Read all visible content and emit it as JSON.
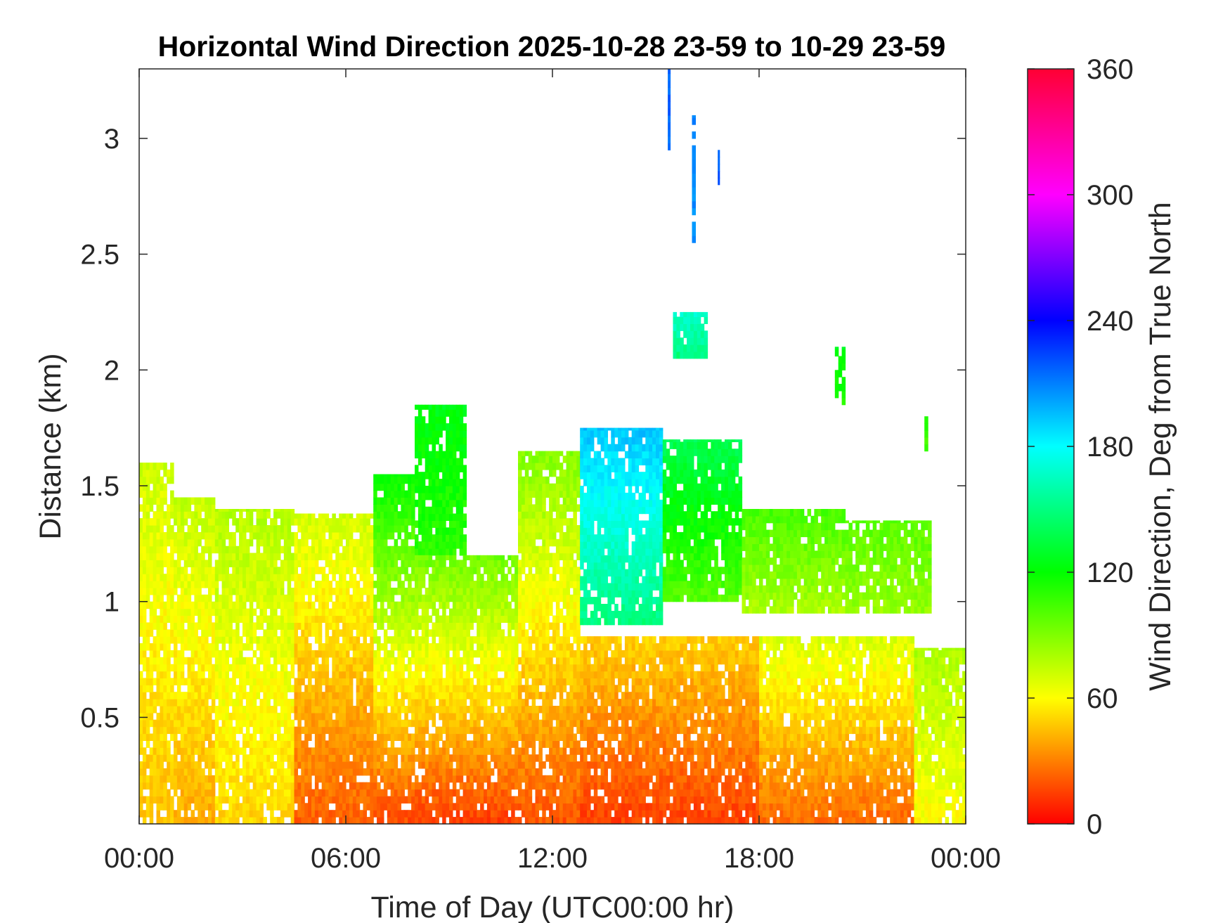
{
  "chart_data": {
    "type": "heatmap",
    "title": "Horizontal Wind Direction 2025-10-28 23-59 to 10-29 23-59",
    "xlabel": "Time of Day (UTC00:00 hr)",
    "ylabel": "Distance (km)",
    "colorbar_label": "Wind Direction, Deg from True North",
    "x_tick_labels": [
      "00:00",
      "06:00",
      "12:00",
      "18:00",
      "00:00"
    ],
    "x_tick_hours": [
      0,
      6,
      12,
      18,
      24
    ],
    "xlim_hours": [
      0,
      24
    ],
    "y_tick_labels": [
      "0.5",
      "1",
      "1.5",
      "2",
      "2.5",
      "3"
    ],
    "y_tick_values": [
      0.5,
      1,
      1.5,
      2,
      2.5,
      3
    ],
    "ylim_km": [
      0.04,
      3.3
    ],
    "colorbar_tick_labels": [
      "0",
      "60",
      "120",
      "180",
      "240",
      "300",
      "360"
    ],
    "colorbar_tick_values": [
      0,
      60,
      120,
      180,
      240,
      300,
      360
    ],
    "color_range_deg": [
      0,
      360
    ],
    "colormap": [
      "#ff0000",
      "#ffff00",
      "#00ff00",
      "#00ffff",
      "#0000ff",
      "#ff00ff",
      "#ff0033"
    ],
    "grid": false,
    "sampling": {
      "time_step_hours": 0.1,
      "range_step_km": 0.03
    },
    "regions": [
      {
        "hour_from": 0.0,
        "hour_to": 1.0,
        "km_from": 0.04,
        "km_to": 1.6,
        "deg_bottom": 45,
        "deg_top": 72
      },
      {
        "hour_from": 1.0,
        "hour_to": 2.2,
        "km_from": 0.04,
        "km_to": 1.45,
        "deg_bottom": 40,
        "deg_top": 75
      },
      {
        "hour_from": 2.2,
        "hour_to": 4.5,
        "km_from": 0.04,
        "km_to": 1.4,
        "deg_bottom": 50,
        "deg_top": 78
      },
      {
        "hour_from": 4.5,
        "hour_to": 6.8,
        "km_from": 0.04,
        "km_to": 1.38,
        "deg_bottom": 22,
        "deg_top": 72
      },
      {
        "hour_from": 6.8,
        "hour_to": 8.0,
        "km_from": 0.04,
        "km_to": 1.55,
        "deg_bottom": 18,
        "deg_top": 120
      },
      {
        "hour_from": 8.0,
        "hour_to": 9.5,
        "km_from": 1.2,
        "km_to": 1.85,
        "deg_bottom": 110,
        "deg_top": 125
      },
      {
        "hour_from": 8.0,
        "hour_to": 11.0,
        "km_from": 0.04,
        "km_to": 1.2,
        "deg_bottom": 15,
        "deg_top": 95
      },
      {
        "hour_from": 11.0,
        "hour_to": 12.8,
        "km_from": 0.04,
        "km_to": 1.65,
        "deg_bottom": 20,
        "deg_top": 90
      },
      {
        "hour_from": 12.8,
        "hour_to": 15.2,
        "km_from": 0.9,
        "km_to": 1.75,
        "deg_bottom": 150,
        "deg_top": 195
      },
      {
        "hour_from": 12.8,
        "hour_to": 18.0,
        "km_from": 0.04,
        "km_to": 0.85,
        "deg_bottom": 15,
        "deg_top": 50
      },
      {
        "hour_from": 15.2,
        "hour_to": 17.5,
        "km_from": 1.0,
        "km_to": 1.7,
        "deg_bottom": 100,
        "deg_top": 140
      },
      {
        "hour_from": 17.5,
        "hour_to": 20.5,
        "km_from": 0.95,
        "km_to": 1.4,
        "deg_bottom": 80,
        "deg_top": 105
      },
      {
        "hour_from": 18.0,
        "hour_to": 22.5,
        "km_from": 0.04,
        "km_to": 0.85,
        "deg_bottom": 25,
        "deg_top": 70
      },
      {
        "hour_from": 20.5,
        "hour_to": 23.0,
        "km_from": 0.95,
        "km_to": 1.35,
        "deg_bottom": 85,
        "deg_top": 100
      },
      {
        "hour_from": 22.5,
        "hour_to": 24.0,
        "km_from": 0.04,
        "km_to": 0.8,
        "deg_bottom": 60,
        "deg_top": 80
      },
      {
        "hour_from": 15.5,
        "hour_to": 16.5,
        "km_from": 2.05,
        "km_to": 2.25,
        "deg_bottom": 150,
        "deg_top": 170
      },
      {
        "hour_from": 20.2,
        "hour_to": 20.5,
        "km_from": 1.85,
        "km_to": 2.1,
        "deg_bottom": 115,
        "deg_top": 125
      },
      {
        "hour_from": 22.8,
        "hour_to": 22.9,
        "km_from": 1.65,
        "km_to": 1.8,
        "deg_bottom": 105,
        "deg_top": 110
      },
      {
        "hour_from": 15.35,
        "hour_to": 15.42,
        "km_from": 2.95,
        "km_to": 3.3,
        "deg_bottom": 215,
        "deg_top": 215
      },
      {
        "hour_from": 16.05,
        "hour_to": 16.15,
        "km_from": 2.55,
        "km_to": 3.1,
        "deg_bottom": 205,
        "deg_top": 210
      },
      {
        "hour_from": 16.8,
        "hour_to": 16.85,
        "km_from": 2.8,
        "km_to": 2.95,
        "deg_bottom": 220,
        "deg_top": 220
      }
    ]
  }
}
